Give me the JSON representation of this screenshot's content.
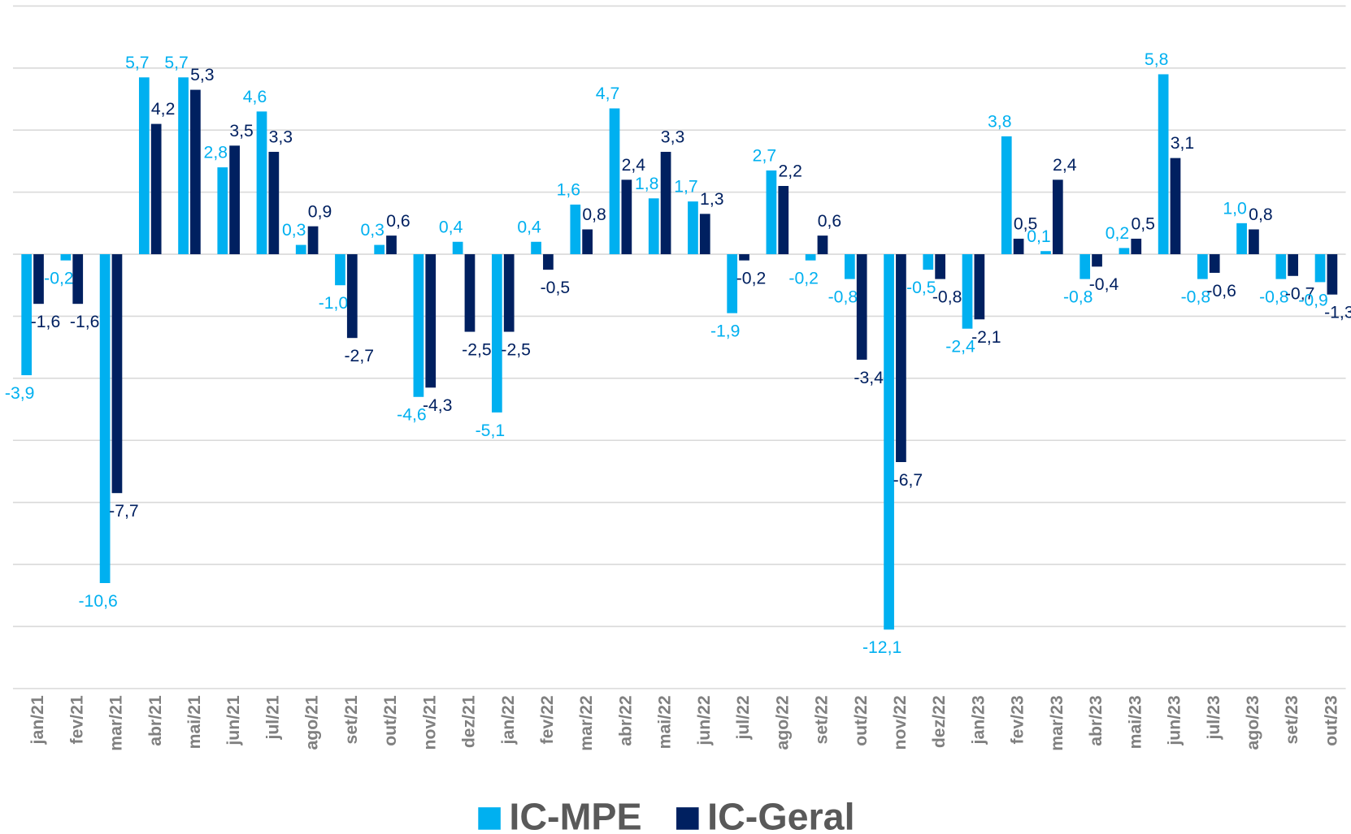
{
  "chart_data": {
    "type": "bar",
    "categories": [
      "jan/21",
      "fev/21",
      "mar/21",
      "abr/21",
      "mai/21",
      "jun/21",
      "jul/21",
      "ago/21",
      "set/21",
      "out/21",
      "nov/21",
      "dez/21",
      "jan/22",
      "fev/22",
      "mar/22",
      "abr/22",
      "mai/22",
      "jun/22",
      "jul/22",
      "ago/22",
      "set/22",
      "out/22",
      "nov/22",
      "dez/22",
      "jan/23",
      "fev/23",
      "mar/23",
      "abr/23",
      "mai/23",
      "jun/23",
      "jul/23",
      "ago/23",
      "set/23",
      "out/23"
    ],
    "series": [
      {
        "name": "IC-MPE",
        "color": "#00b0f0",
        "values": [
          -3.9,
          -0.2,
          -10.6,
          5.7,
          5.7,
          2.8,
          4.6,
          0.3,
          -1.0,
          0.3,
          -4.6,
          0.4,
          -5.1,
          0.4,
          1.6,
          4.7,
          1.8,
          1.7,
          -1.9,
          2.7,
          -0.2,
          -0.8,
          -12.1,
          -0.5,
          -2.4,
          3.8,
          0.1,
          -0.8,
          0.2,
          5.8,
          -0.8,
          1.0,
          -0.8,
          -0.9
        ],
        "value_labels": [
          "-3,9",
          "-0,2",
          "-10,6",
          "5,7",
          "5,7",
          "2,8",
          "4,6",
          "0,3",
          "-1,0",
          "0,3",
          "-4,6",
          "0,4",
          "-5,1",
          "0,4",
          "1,6",
          "4,7",
          "1,8",
          "1,7",
          "-1,9",
          "2,7",
          "-0,2",
          "-0,8",
          "-12,1",
          "-0,5",
          "-2,4",
          "3,8",
          "0,1",
          "-0,8",
          "0,2",
          "5,8",
          "-0,8",
          "1,0",
          "-0,8",
          "-0,9"
        ]
      },
      {
        "name": "IC-Geral",
        "color": "#002060",
        "values": [
          -1.6,
          -1.6,
          -7.7,
          4.2,
          5.3,
          3.5,
          3.3,
          0.9,
          -2.7,
          0.6,
          -4.3,
          -2.5,
          -2.5,
          -0.5,
          0.8,
          2.4,
          3.3,
          1.3,
          -0.2,
          2.2,
          0.6,
          -3.4,
          -6.7,
          -0.8,
          -2.1,
          0.5,
          2.4,
          -0.4,
          0.5,
          3.1,
          -0.6,
          0.8,
          -0.7,
          -1.3
        ],
        "value_labels": [
          "-1,6",
          "-1,6",
          "-7,7",
          "4,2",
          "5,3",
          "3,5",
          "3,3",
          "0,9",
          "-2,7",
          "0,6",
          "-4,3",
          "-2,5",
          "-2,5",
          "-0,5",
          "0,8",
          "2,4",
          "3,3",
          "1,3",
          "-0,2",
          "2,2",
          "0,6",
          "-3,4",
          "-6,7",
          "-0,8",
          "-2,1",
          "0,5",
          "2,4",
          "-0,4",
          "0,5",
          "3,1",
          "-0,6",
          "0,8",
          "-0,7",
          "-1,3"
        ]
      }
    ],
    "ylim": [
      -14,
      8
    ],
    "yticks": [
      -14,
      -12,
      -10,
      -8,
      -6,
      -4,
      -2,
      0,
      2,
      4,
      6,
      8
    ],
    "grid": true,
    "legend": "bottom"
  }
}
